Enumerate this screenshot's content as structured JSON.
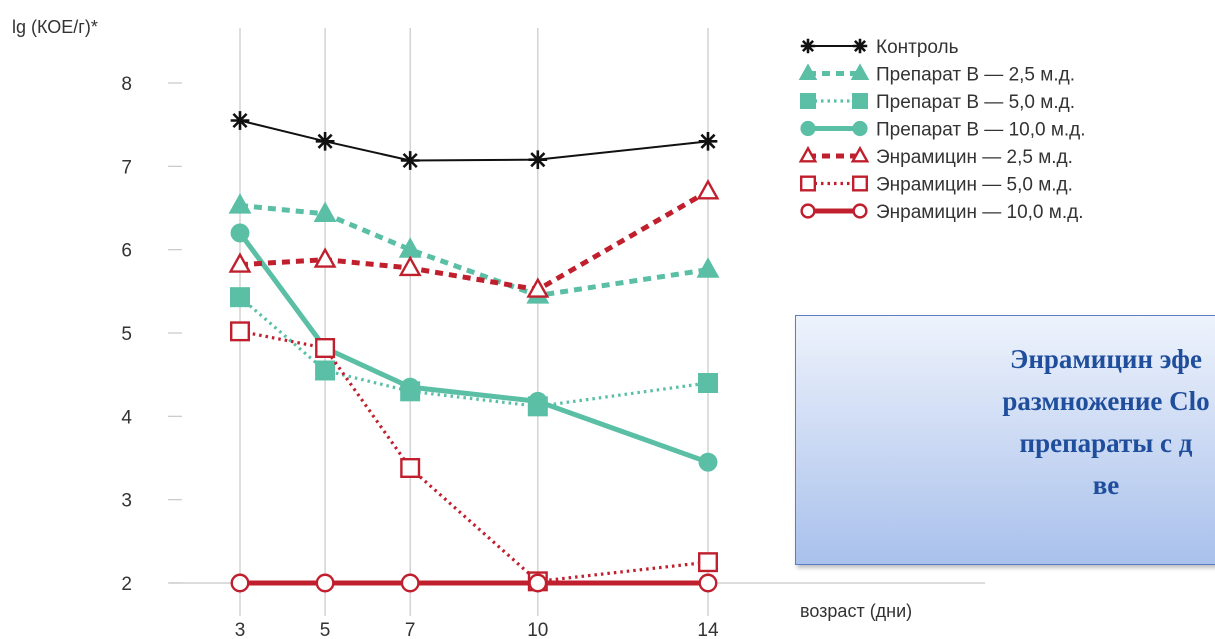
{
  "chart_data": {
    "type": "line",
    "ylabel": "lg (КОЕ/г)*",
    "xlabel": "возраст (дни)",
    "categories": [
      "3",
      "5",
      "7",
      "10",
      "14"
    ],
    "x": [
      3,
      5,
      7,
      10,
      14
    ],
    "yticks": [
      "2",
      "3",
      "4",
      "5",
      "6",
      "7",
      "8"
    ],
    "ylim": [
      2,
      8
    ],
    "grid": "vertical",
    "legend_position": "top-right",
    "series": [
      {
        "name": "Контроль",
        "values": [
          7.55,
          7.3,
          7.07,
          7.08,
          7.3
        ],
        "color": "#111111",
        "line_style": "solid",
        "marker": "star"
      },
      {
        "name": "Препарат В — 2,5 м.д.",
        "values": [
          6.53,
          6.43,
          6.0,
          5.45,
          5.76
        ],
        "color": "#5bbfa6",
        "line_style": "dashed",
        "marker": "triangle-filled"
      },
      {
        "name": "Препарат В — 5,0 м.д.",
        "values": [
          5.43,
          4.55,
          4.3,
          4.12,
          4.4
        ],
        "color": "#5bbfa6",
        "line_style": "dotted",
        "marker": "square-filled"
      },
      {
        "name": "Препарат В — 10,0 м.д.",
        "values": [
          6.2,
          4.82,
          4.35,
          4.18,
          3.45
        ],
        "color": "#5bbfa6",
        "line_style": "solid",
        "marker": "circle-filled"
      },
      {
        "name": "Энрамицин — 2,5 м.д.",
        "values": [
          5.82,
          5.88,
          5.78,
          5.52,
          6.7
        ],
        "color": "#c0202e",
        "line_style": "dashed",
        "marker": "triangle-open"
      },
      {
        "name": "Энрамицин — 5,0 м.д.",
        "values": [
          5.02,
          4.82,
          3.38,
          2.02,
          2.25
        ],
        "color": "#c0202e",
        "line_style": "dotted",
        "marker": "square-open"
      },
      {
        "name": "Энрамицин — 10,0 м.д.",
        "values": [
          2.0,
          2.0,
          2.0,
          2.0,
          2.0
        ],
        "color": "#c0202e",
        "line_style": "solid",
        "marker": "circle-open"
      }
    ]
  },
  "callout": {
    "text": "Энрамицин эфе\nразмножение  Clo\nпрепараты с д\nве"
  }
}
